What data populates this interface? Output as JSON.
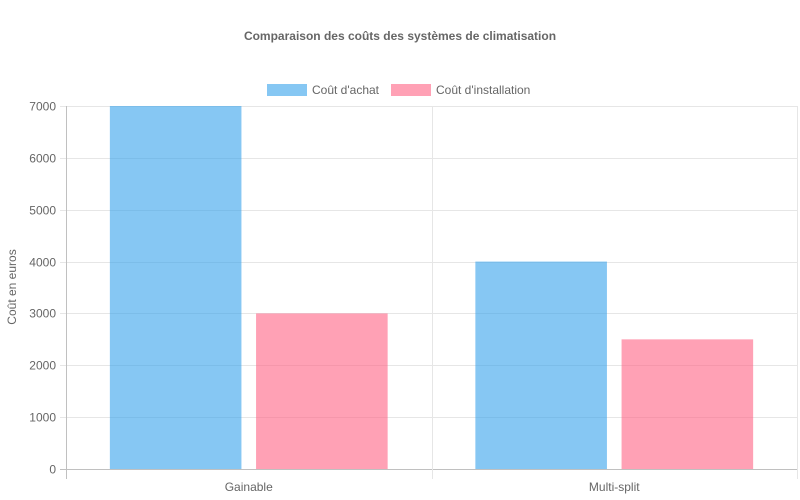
{
  "chart_data": {
    "type": "bar",
    "title": "Comparaison des coûts des systèmes de climatisation",
    "categories": [
      "Gainable",
      "Multi-split"
    ],
    "series": [
      {
        "name": "Coût d'achat",
        "values": [
          7000,
          4000
        ],
        "color": "#36a2eb",
        "fill": "rgba(54,162,235,0.6)"
      },
      {
        "name": "Coût d'installation",
        "values": [
          3000,
          2500
        ],
        "color": "#ff6384",
        "fill": "rgba(255,99,132,0.6)"
      }
    ],
    "ylabel": "Coût en euros",
    "xlabel": "",
    "ylim": [
      0,
      7000
    ],
    "yticks": [
      0,
      1000,
      2000,
      3000,
      4000,
      5000,
      6000,
      7000
    ],
    "grid": true,
    "legend": "top"
  }
}
